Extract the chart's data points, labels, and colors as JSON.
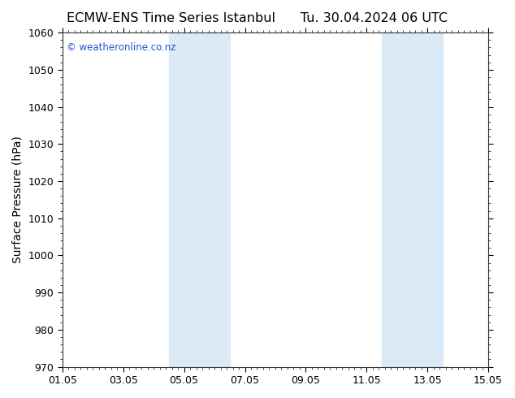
{
  "title_left": "ECMW-ENS Time Series Istanbul",
  "title_right": "Tu. 30.04.2024 06 UTC",
  "ylabel": "Surface Pressure (hPa)",
  "ylim": [
    970,
    1060
  ],
  "yticks": [
    970,
    980,
    990,
    1000,
    1010,
    1020,
    1030,
    1040,
    1050,
    1060
  ],
  "xlim_start": 0,
  "xlim_end": 14,
  "xtick_labels": [
    "01.05",
    "03.05",
    "05.05",
    "07.05",
    "09.05",
    "11.05",
    "13.05",
    "15.05"
  ],
  "xtick_positions": [
    0,
    2,
    4,
    6,
    8,
    10,
    12,
    14
  ],
  "shaded_bands": [
    {
      "xmin": 3.5,
      "xmax": 5.5
    },
    {
      "xmin": 10.5,
      "xmax": 12.5
    }
  ],
  "shaded_color": "#daeaf7",
  "background_color": "#ffffff",
  "plot_bg_color": "#ffffff",
  "watermark_text": "© weatheronline.co.nz",
  "watermark_color": "#2255cc",
  "title_fontsize": 11.5,
  "ylabel_fontsize": 10,
  "tick_fontsize": 9
}
